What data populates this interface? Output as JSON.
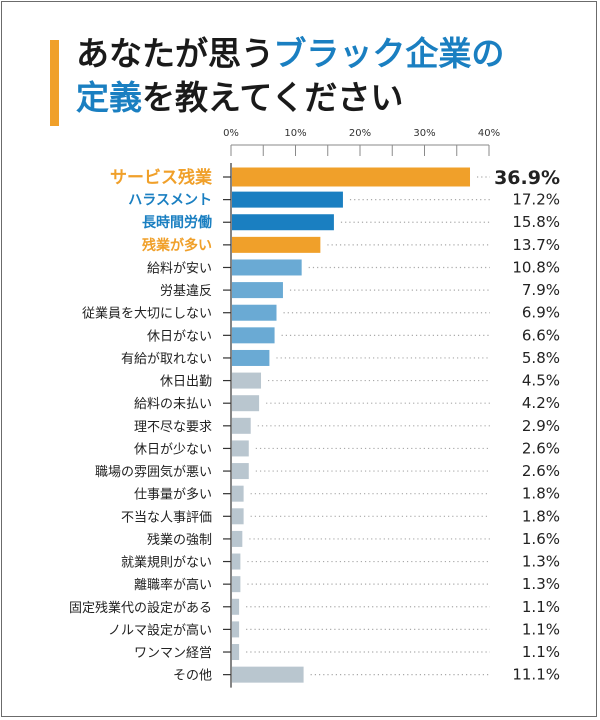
{
  "title": {
    "line1_part1": "あなたが思う",
    "line1_part2": "ブラック企業の",
    "line2_part1": "定義",
    "line2_part2": "を教えてください"
  },
  "colors": {
    "orange": "#f0a02a",
    "blue": "#1a7fc1",
    "lightblue": "#6aaad4",
    "gray": "#b9c6cf",
    "accent": "#f0a02a",
    "title_blue": "#1a7fc1"
  },
  "chart_data": {
    "type": "bar",
    "orientation": "horizontal",
    "title": "あなたが思うブラック企業の定義を教えてください",
    "xlabel": "",
    "ylabel": "",
    "xlim": [
      0,
      40
    ],
    "xticks": [
      "0%",
      "10%",
      "20%",
      "30%",
      "40%"
    ],
    "xtick_values": [
      0,
      10,
      20,
      30,
      40
    ],
    "minor_tick_step": 5,
    "grid": false,
    "legend": "none",
    "unit": "%",
    "categories": [
      "サービス残業",
      "ハラスメント",
      "長時間労働",
      "残業が多い",
      "給料が安い",
      "労基違反",
      "従業員を大切にしない",
      "休日がない",
      "有給が取れない",
      "休日出勤",
      "給料の未払い",
      "理不尽な要求",
      "休日が少ない",
      "職場の雰囲気が悪い",
      "仕事量が多い",
      "不当な人事評価",
      "残業の強制",
      "就業規則がない",
      "離職率が高い",
      "固定残業代の設定がある",
      "ノルマ設定が高い",
      "ワンマン経営",
      "その他"
    ],
    "values": [
      36.9,
      17.2,
      15.8,
      13.7,
      10.8,
      7.9,
      6.9,
      6.6,
      5.8,
      4.5,
      4.2,
      2.9,
      2.6,
      2.6,
      1.8,
      1.8,
      1.6,
      1.3,
      1.3,
      1.1,
      1.1,
      1.1,
      11.1
    ],
    "value_labels": [
      "36.9%",
      "17.2%",
      "15.8%",
      "13.7%",
      "10.8%",
      "7.9%",
      "6.9%",
      "6.6%",
      "5.8%",
      "4.5%",
      "4.2%",
      "2.9%",
      "2.6%",
      "2.6%",
      "1.8%",
      "1.8%",
      "1.6%",
      "1.3%",
      "1.3%",
      "1.1%",
      "1.1%",
      "1.1%",
      "11.1%"
    ],
    "bar_colors": [
      "orange",
      "blue",
      "blue",
      "orange",
      "lightblue",
      "lightblue",
      "lightblue",
      "lightblue",
      "lightblue",
      "gray",
      "gray",
      "gray",
      "gray",
      "gray",
      "gray",
      "gray",
      "gray",
      "gray",
      "gray",
      "gray",
      "gray",
      "gray",
      "gray"
    ],
    "label_colors": [
      "orange",
      "blue",
      "blue",
      "orange",
      "default",
      "default",
      "default",
      "default",
      "default",
      "default",
      "default",
      "default",
      "default",
      "default",
      "default",
      "default",
      "default",
      "default",
      "default",
      "default",
      "default",
      "default",
      "default"
    ],
    "emphasis": [
      "big",
      "mid",
      "mid",
      "mid",
      "normal",
      "normal",
      "normal",
      "normal",
      "normal",
      "normal",
      "normal",
      "normal",
      "normal",
      "normal",
      "normal",
      "normal",
      "normal",
      "normal",
      "normal",
      "normal",
      "normal",
      "normal",
      "normal"
    ]
  }
}
